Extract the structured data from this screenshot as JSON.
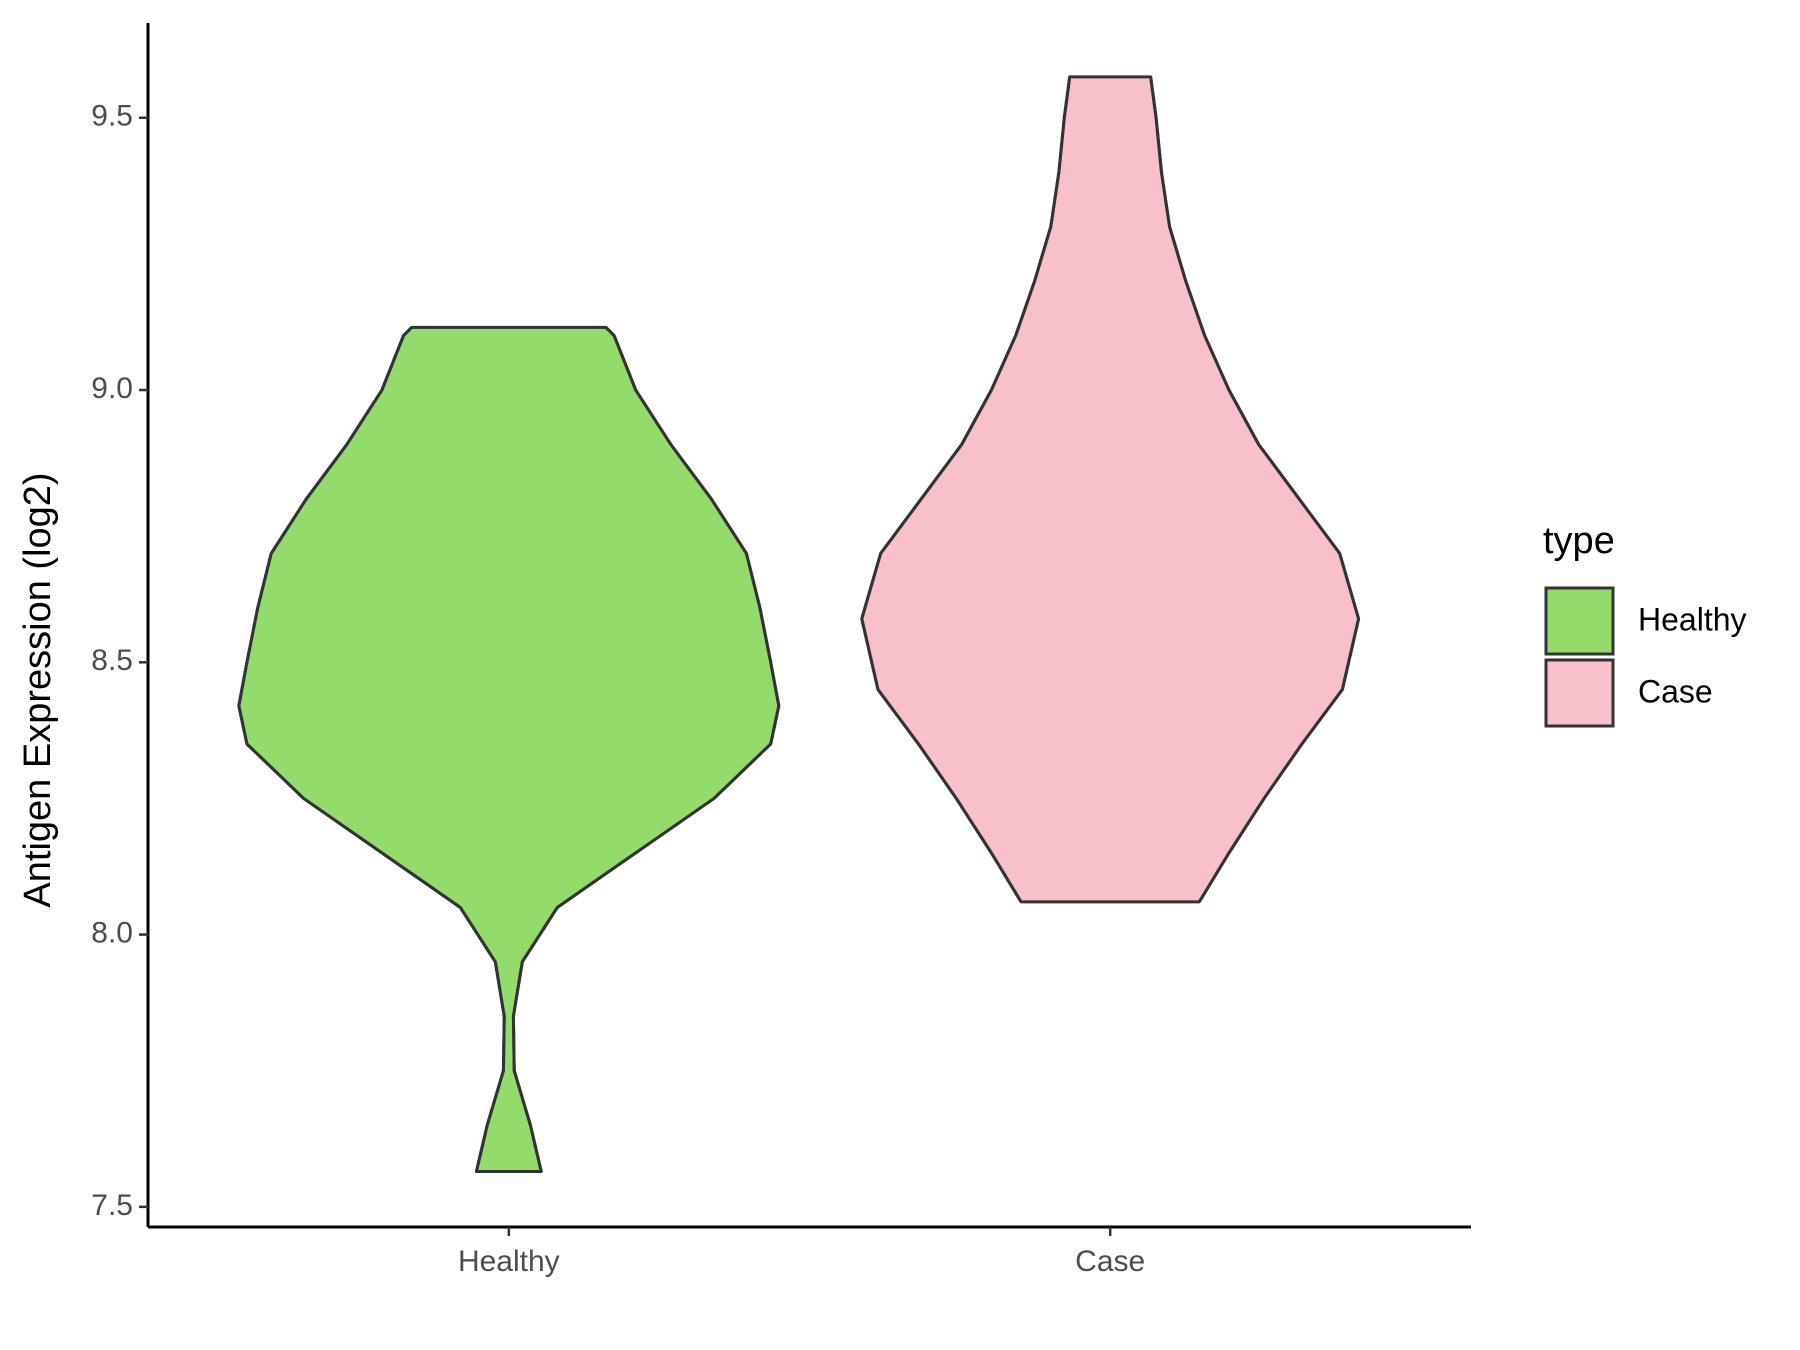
{
  "chart_data": {
    "type": "violin",
    "y_label": "Antigen Expression (log2)",
    "categories": [
      "Healthy",
      "Case"
    ],
    "ylim": [
      7.463,
      9.674
    ],
    "yticks": [
      {
        "value": 7.5,
        "label": "7.5"
      },
      {
        "value": 8,
        "label": "8.0"
      },
      {
        "value": 8.5,
        "label": "8.5"
      },
      {
        "value": 9,
        "label": "9.0"
      },
      {
        "value": 9.5,
        "label": "9.5"
      }
    ],
    "legend_title": "type",
    "legend_position": "right",
    "series": [
      {
        "name": "Healthy",
        "color": "#93dc6b",
        "y": [
          7.565,
          7.65,
          7.75,
          7.85,
          7.95,
          8.05,
          8.15,
          8.25,
          8.35,
          8.42,
          8.5,
          8.6,
          8.7,
          8.8,
          8.9,
          9.0,
          9.1,
          9.115
        ],
        "density": [
          0.12,
          0.08,
          0.02,
          0.017,
          0.05,
          0.18,
          0.47,
          0.76,
          0.97,
          1.0,
          0.97,
          0.93,
          0.88,
          0.75,
          0.6,
          0.47,
          0.39,
          0.36
        ]
      },
      {
        "name": "Case",
        "color": "#f7c0cb",
        "y": [
          8.06,
          8.15,
          8.25,
          8.35,
          8.45,
          8.58,
          8.7,
          8.8,
          8.9,
          9.0,
          9.1,
          9.2,
          9.3,
          9.4,
          9.5,
          9.575
        ],
        "density": [
          0.33,
          0.44,
          0.57,
          0.71,
          0.86,
          0.92,
          0.85,
          0.7,
          0.55,
          0.44,
          0.35,
          0.28,
          0.22,
          0.19,
          0.17,
          0.15
        ]
      }
    ]
  }
}
